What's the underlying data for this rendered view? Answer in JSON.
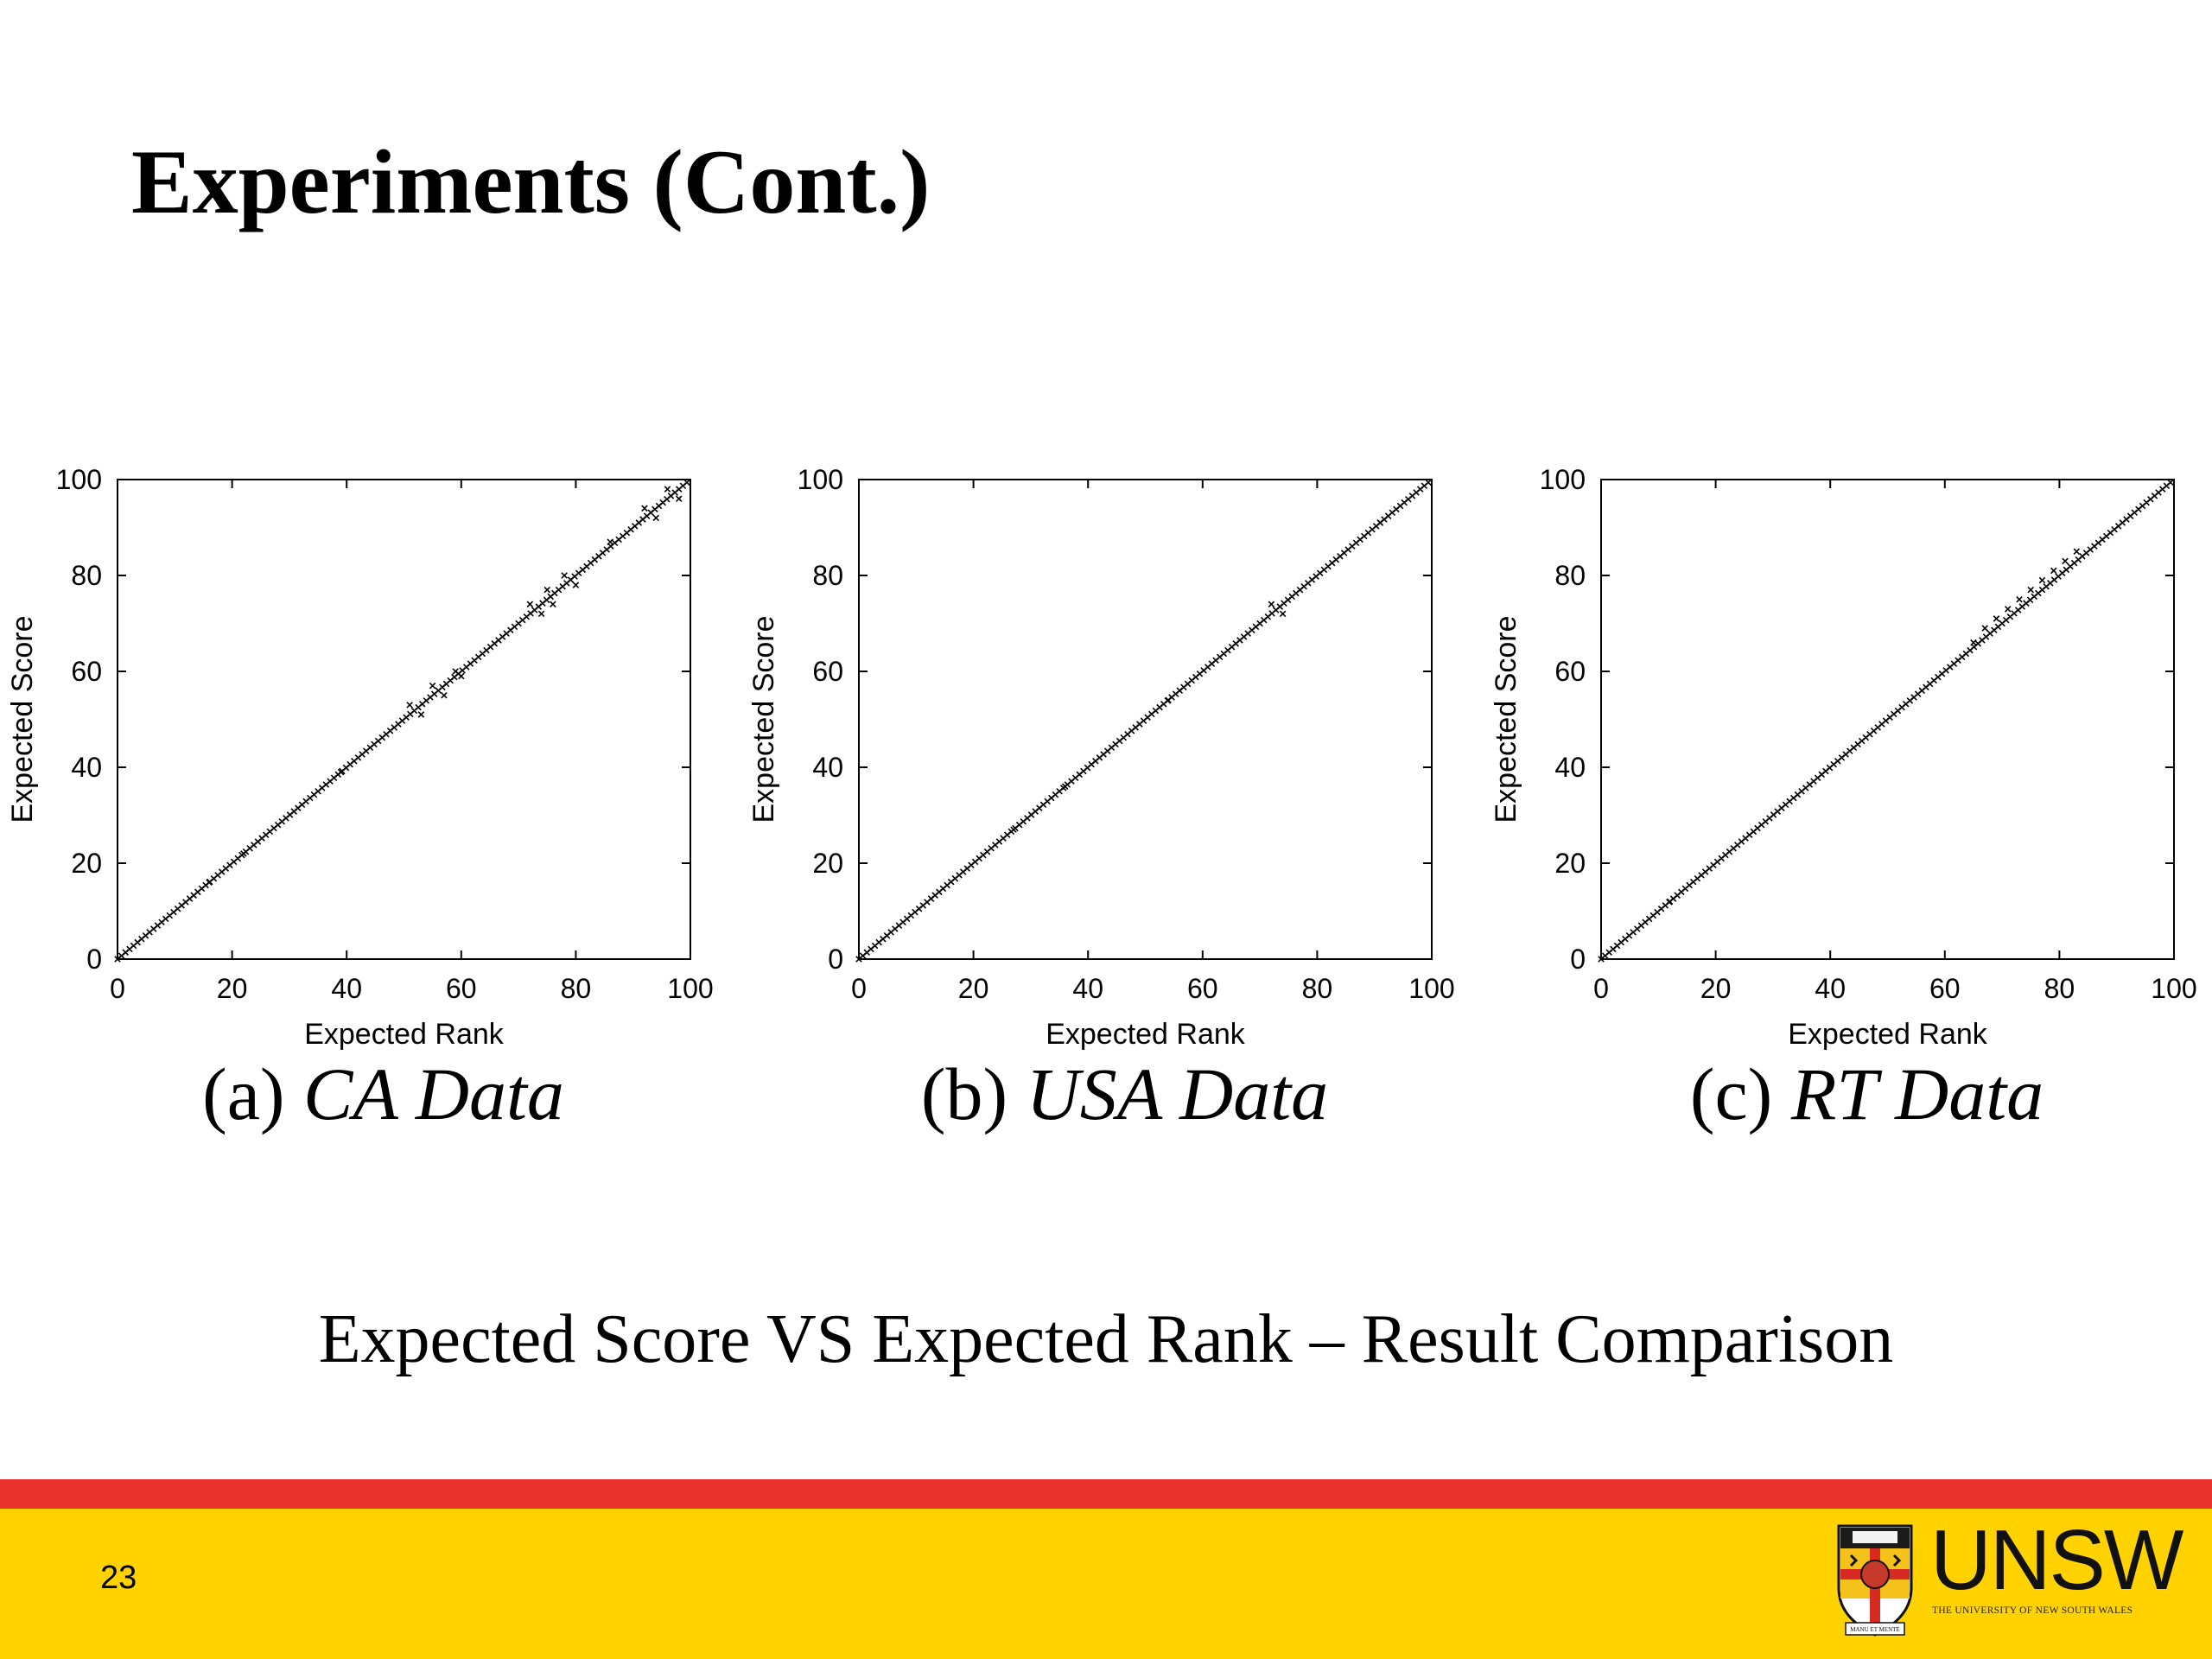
{
  "slide": {
    "title": "Experiments (Cont.)",
    "subtitle": "Expected Score VS Expected Rank – Result Comparison",
    "page_number": "23"
  },
  "logo": {
    "wordmark": "UNSW",
    "tagline": "THE UNIVERSITY OF NEW SOUTH WALES",
    "crest_motto": "MANU ET MENTE"
  },
  "colors": {
    "footer_red": "#E9322B",
    "footer_yellow": "#FFD200",
    "axis": "#000000",
    "marker": "#000000"
  },
  "chart_data": [
    {
      "type": "scatter",
      "caption_label": "(a)",
      "caption_name": "CA Data",
      "xlabel": "Expected Rank",
      "ylabel": "Expected Score",
      "xlim": [
        0,
        100
      ],
      "ylim": [
        0,
        100
      ],
      "xticks": [
        0,
        20,
        40,
        60,
        80,
        100
      ],
      "yticks": [
        0,
        20,
        40,
        60,
        80,
        100
      ],
      "grid": false,
      "marker": "x",
      "series_trend": "y ≈ x",
      "deviations": [
        {
          "x": 16,
          "y": 16
        },
        {
          "x": 22,
          "y": 22
        },
        {
          "x": 39,
          "y": 39
        },
        {
          "x": 51,
          "y": 53
        },
        {
          "x": 53,
          "y": 51
        },
        {
          "x": 55,
          "y": 57
        },
        {
          "x": 57,
          "y": 55
        },
        {
          "x": 59,
          "y": 60
        },
        {
          "x": 60,
          "y": 59
        },
        {
          "x": 72,
          "y": 74
        },
        {
          "x": 74,
          "y": 72
        },
        {
          "x": 75,
          "y": 77
        },
        {
          "x": 76,
          "y": 74
        },
        {
          "x": 78,
          "y": 80
        },
        {
          "x": 80,
          "y": 78
        },
        {
          "x": 86,
          "y": 87
        },
        {
          "x": 92,
          "y": 94
        },
        {
          "x": 94,
          "y": 92
        },
        {
          "x": 96,
          "y": 98
        },
        {
          "x": 98,
          "y": 96
        }
      ]
    },
    {
      "type": "scatter",
      "caption_label": "(b)",
      "caption_name": "USA Data",
      "xlabel": "Expected Rank",
      "ylabel": "Expected Score",
      "xlim": [
        0,
        100
      ],
      "ylim": [
        0,
        100
      ],
      "xticks": [
        0,
        20,
        40,
        60,
        80,
        100
      ],
      "yticks": [
        0,
        20,
        40,
        60,
        80,
        100
      ],
      "grid": false,
      "marker": "x",
      "series_trend": "y ≈ x",
      "deviations": [
        {
          "x": 27,
          "y": 27
        },
        {
          "x": 36,
          "y": 36
        },
        {
          "x": 54,
          "y": 54
        },
        {
          "x": 72,
          "y": 74
        },
        {
          "x": 74,
          "y": 72
        },
        {
          "x": 91,
          "y": 91
        }
      ]
    },
    {
      "type": "scatter",
      "caption_label": "(c)",
      "caption_name": "RT Data",
      "xlabel": "Expected Rank",
      "ylabel": "Expected Score",
      "xlim": [
        0,
        100
      ],
      "ylim": [
        0,
        100
      ],
      "xticks": [
        0,
        20,
        40,
        60,
        80,
        100
      ],
      "yticks": [
        0,
        20,
        40,
        60,
        80,
        100
      ],
      "grid": false,
      "marker": "x",
      "series_trend": "y ≈ x",
      "deviations": [
        {
          "x": 12,
          "y": 12
        },
        {
          "x": 65,
          "y": 66
        },
        {
          "x": 67,
          "y": 69
        },
        {
          "x": 69,
          "y": 71
        },
        {
          "x": 71,
          "y": 73
        },
        {
          "x": 73,
          "y": 75
        },
        {
          "x": 75,
          "y": 77
        },
        {
          "x": 77,
          "y": 79
        },
        {
          "x": 79,
          "y": 81
        },
        {
          "x": 81,
          "y": 83
        },
        {
          "x": 83,
          "y": 85
        }
      ]
    }
  ]
}
